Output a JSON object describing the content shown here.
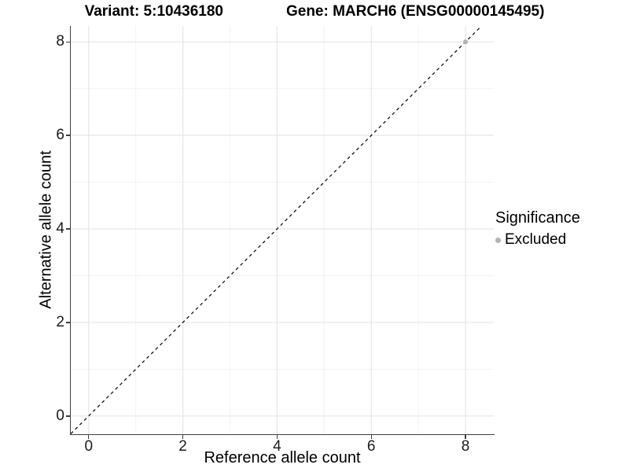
{
  "header": {
    "variant_title": "Variant: 5:10436180",
    "gene_title": "Gene: MARCH6 (ENSG00000145495)"
  },
  "legend": {
    "title": "Significance",
    "items": [
      {
        "label": "Excluded",
        "color": "#b3b3b3"
      }
    ]
  },
  "colors": {
    "grid_major": "#e6e6e6",
    "grid_minor": "#f2f2f2",
    "axis_line": "#3f3f3f",
    "tick_mark": "#333333",
    "text": "#000000",
    "reference_line": "#000000",
    "point": "#b3b3b3"
  },
  "chart_data": {
    "type": "scatter",
    "title": "Variant: 5:10436180    Gene: MARCH6 (ENSG00000145495)",
    "xlabel": "Reference allele count",
    "ylabel": "Alternative allele count",
    "x_ticks": [
      0,
      2,
      4,
      6,
      8
    ],
    "y_ticks": [
      0,
      2,
      4,
      6,
      8
    ],
    "x_minor_ticks": [
      1,
      3,
      5,
      7
    ],
    "y_minor_ticks": [
      1,
      3,
      5,
      7
    ],
    "x_range": [
      -0.38,
      8.6
    ],
    "y_range": [
      -0.39,
      8.34
    ],
    "grid": true,
    "legend_position": "right",
    "reference_line": {
      "type": "identity",
      "slope": 1,
      "intercept": 0,
      "style": "dashed"
    },
    "series": [
      {
        "name": "Excluded",
        "color": "#b3b3b3",
        "points": [
          {
            "x": 8,
            "y": 8
          }
        ]
      }
    ]
  }
}
